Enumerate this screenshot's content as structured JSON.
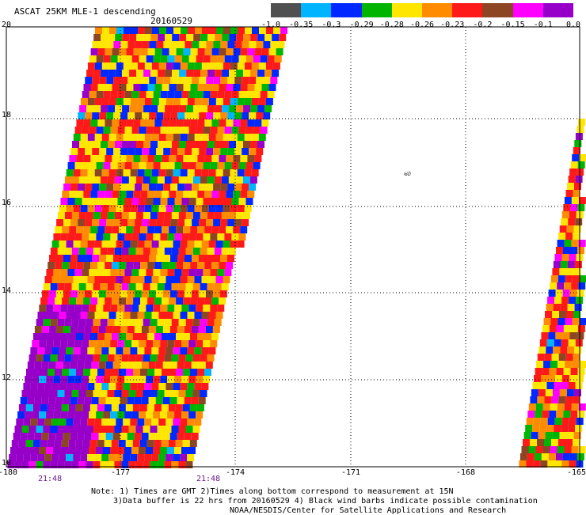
{
  "header": {
    "title": "ASCAT 25KM MLE-1 descending",
    "date": "20160529"
  },
  "colorbar": {
    "colors": [
      "#505050",
      "#00b4ff",
      "#0028ff",
      "#00b400",
      "#ffe600",
      "#ff8c00",
      "#ff1a1a",
      "#8c4623",
      "#ff00ff",
      "#9600c8"
    ],
    "labels": [
      "-1.0",
      "-0.35",
      "-0.3",
      "-0.29",
      "-0.28",
      "-0.26",
      "-0.23",
      "-0.2",
      "-0.15",
      "-0.1",
      "0.0"
    ]
  },
  "axes": {
    "y_ticks": [
      "20",
      "18",
      "16",
      "14",
      "12",
      "10"
    ],
    "x_ticks": [
      "-180",
      "-177",
      "-174",
      "-171",
      "-168",
      "-165"
    ]
  },
  "map": {
    "glyph": "ல"
  },
  "times": [
    "21:48",
    "21:48"
  ],
  "notes": [
    "Note: 1) Times are GMT 2)Times along bottom correspond to measurement at 15N",
    "3)Data buffer is 22 hrs from 20160529 4) Black wind barbs indicate possible contamination",
    "NOAA/NESDIS/Center for Satellite Applications and Research"
  ]
}
